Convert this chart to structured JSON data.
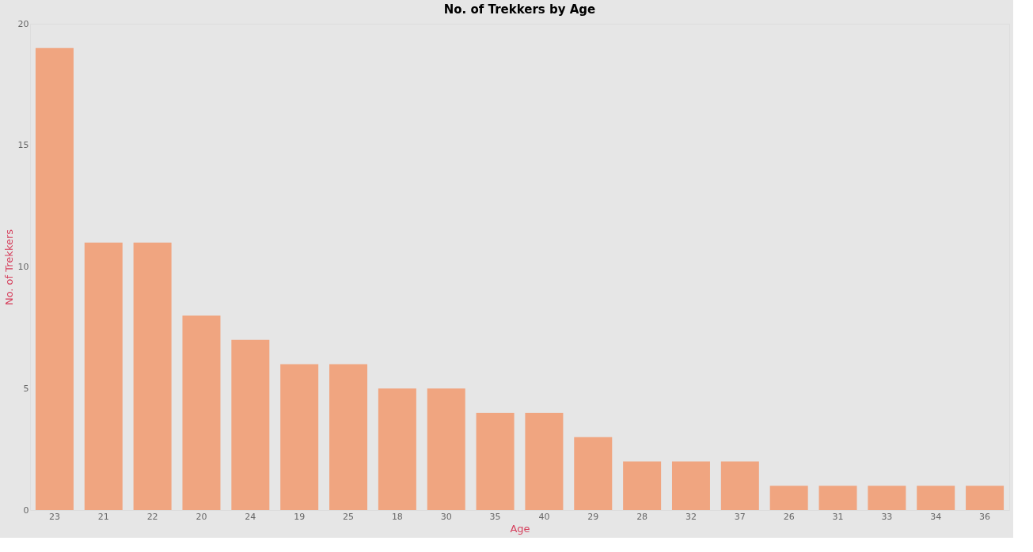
{
  "chart_data": {
    "type": "bar",
    "title": "No. of Trekkers by Age",
    "xlabel": "Age",
    "ylabel": "No. of Trekkers",
    "categories": [
      "23",
      "21",
      "22",
      "20",
      "24",
      "19",
      "25",
      "18",
      "30",
      "35",
      "40",
      "29",
      "28",
      "32",
      "37",
      "26",
      "31",
      "33",
      "34",
      "36"
    ],
    "values": [
      19,
      11,
      11,
      8,
      7,
      6,
      6,
      5,
      5,
      4,
      4,
      3,
      2,
      2,
      2,
      1,
      1,
      1,
      1,
      1
    ],
    "color": "#f0a580",
    "ylim": [
      0,
      20
    ],
    "yticks": [
      0,
      5,
      10,
      15,
      20
    ],
    "grid": false
  }
}
